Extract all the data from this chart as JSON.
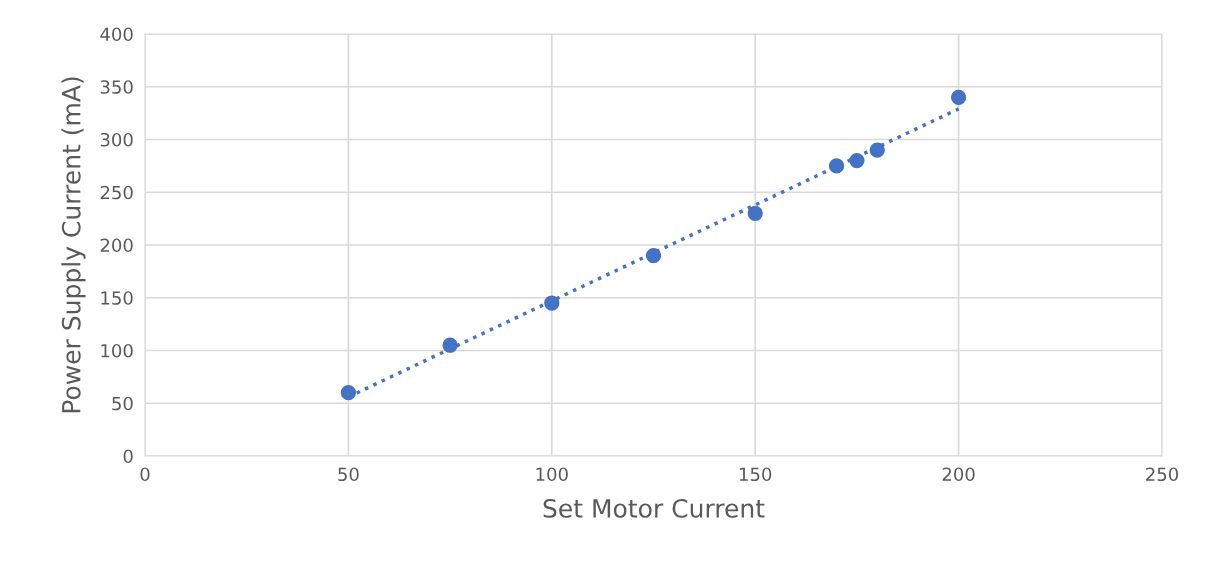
{
  "chart_data": {
    "type": "scatter",
    "xlabel": "Set Motor Current",
    "ylabel": "Power Supply Current (mA)",
    "xlim": [
      0,
      250
    ],
    "xticks": [
      0,
      50,
      100,
      150,
      200,
      250
    ],
    "ylim": [
      0,
      400
    ],
    "yticks": [
      0,
      50,
      100,
      150,
      200,
      250,
      300,
      350,
      400
    ],
    "grid": true,
    "series": [
      {
        "color": "#4472c4",
        "marker": "circle",
        "x": [
          50,
          75,
          100,
          125,
          150,
          170,
          175,
          180,
          200
        ],
        "values": [
          60,
          105,
          145,
          190,
          230,
          275,
          280,
          290,
          340
        ]
      },
      {
        "type": "line",
        "color": "#4472c4",
        "line_style": "dotted",
        "x": [
          50,
          200
        ],
        "values": [
          56,
          329
        ]
      }
    ]
  }
}
